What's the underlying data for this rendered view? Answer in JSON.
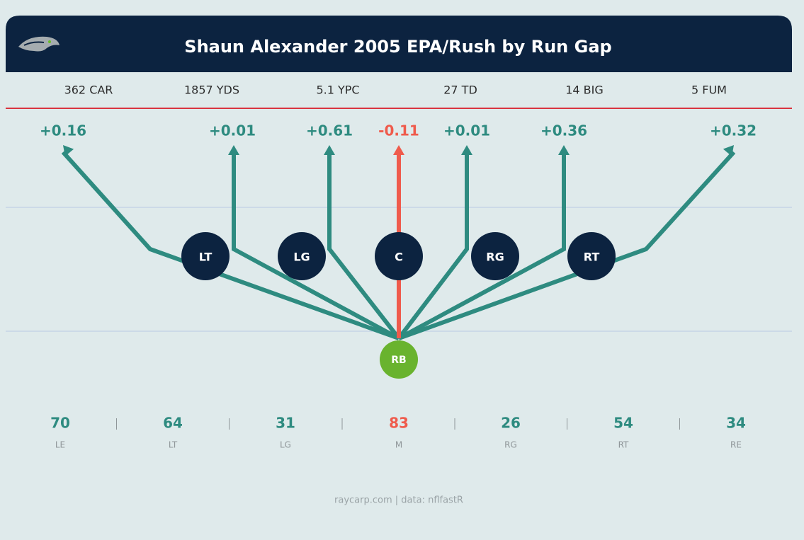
{
  "header": {
    "title": "Shaun Alexander 2005 EPA/Rush by Run Gap"
  },
  "stats": [
    "362 CAR",
    "1857 YDS",
    "5.1 YPC",
    "27 TD",
    "14 BIG",
    "5 FUM"
  ],
  "gaps": [
    {
      "name": "LE",
      "epa": "+0.16",
      "count": "70",
      "color": "#2e8b80"
    },
    {
      "name": "LT",
      "epa": "+0.01",
      "count": "64",
      "color": "#2e8b80"
    },
    {
      "name": "LG",
      "epa": "+0.61",
      "count": "31",
      "color": "#2e8b80"
    },
    {
      "name": "M",
      "epa": "-0.11",
      "count": "83",
      "color": "#ef5b4c"
    },
    {
      "name": "RG",
      "epa": "+0.01",
      "count": "26",
      "color": "#2e8b80"
    },
    {
      "name": "RT",
      "epa": "+0.36",
      "count": "54",
      "color": "#2e8b80"
    },
    {
      "name": "RE",
      "epa": "+0.32",
      "count": "34",
      "color": "#2e8b80"
    }
  ],
  "linemen": [
    "LT",
    "LG",
    "C",
    "RG",
    "RT"
  ],
  "rb": "RB",
  "footer": "raycarp.com | data: nflfastR"
}
